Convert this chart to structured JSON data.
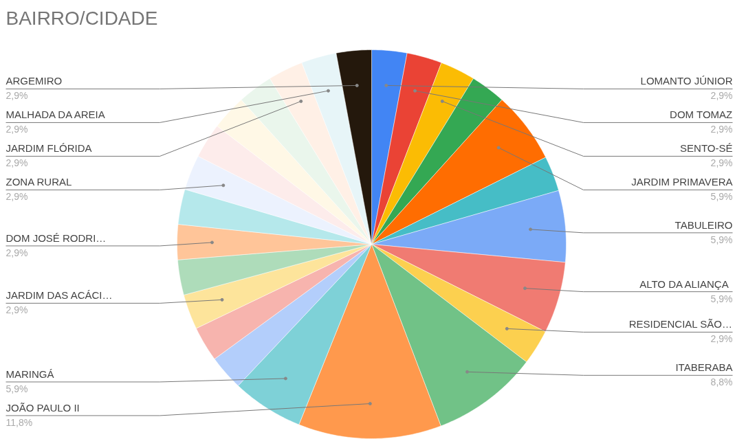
{
  "chart_data": {
    "type": "pie",
    "title": "BAIRRO/CIDADE",
    "categories": [
      "LOMANTO JÚNIOR",
      "DOM TOMAZ",
      "SENTO-SÉ",
      null,
      "JARDIM PRIMAVERA",
      null,
      "TABULEIRO",
      "ALTO DA  ALIANÇA",
      "RESIDENCIAL SÃO…",
      "ITABERABA",
      "JOÃO PAULO II",
      "MARINGÁ",
      null,
      null,
      "JARDIM DAS ACÁCI…",
      null,
      "DOM JOSÉ RODRI…",
      null,
      "ZONA RURAL",
      null,
      null,
      null,
      "JARDIM FLÓRIDA",
      "MALHADA DA AREIA",
      "ARGEMIRO"
    ],
    "values": [
      2.9,
      2.9,
      2.9,
      2.9,
      5.9,
      2.9,
      5.9,
      5.9,
      2.9,
      8.8,
      11.8,
      5.9,
      2.9,
      2.9,
      2.9,
      2.9,
      2.9,
      2.9,
      2.9,
      2.9,
      2.9,
      2.9,
      2.9,
      2.9,
      2.9
    ],
    "value_labels": [
      "2,9%",
      "2,9%",
      "2,9%",
      null,
      "5,9%",
      null,
      "5,9%",
      "5,9%",
      "2,9%",
      "8,8%",
      "11,8%",
      "5,9%",
      null,
      null,
      "2,9%",
      null,
      "2,9%",
      null,
      "2,9%",
      null,
      null,
      null,
      "2,9%",
      "2,9%",
      "2,9%"
    ],
    "colors": [
      "#4285f4",
      "#ea4335",
      "#fbbc04",
      "#34a853",
      "#ff6d01",
      "#46bdc6",
      "#7baaf7",
      "#f07b72",
      "#fcd04f",
      "#71c287",
      "#ff994d",
      "#7ed1d7",
      "#b3cefb",
      "#f7b4ae",
      "#fde49b",
      "#aedcba",
      "#ffc599",
      "#b5e8eb",
      "#ecf2fe",
      "#fdeceb",
      "#fff8e6",
      "#eaf6ec",
      "#fff0e6",
      "#e7f5f8",
      "#24180c"
    ],
    "legend": false
  }
}
